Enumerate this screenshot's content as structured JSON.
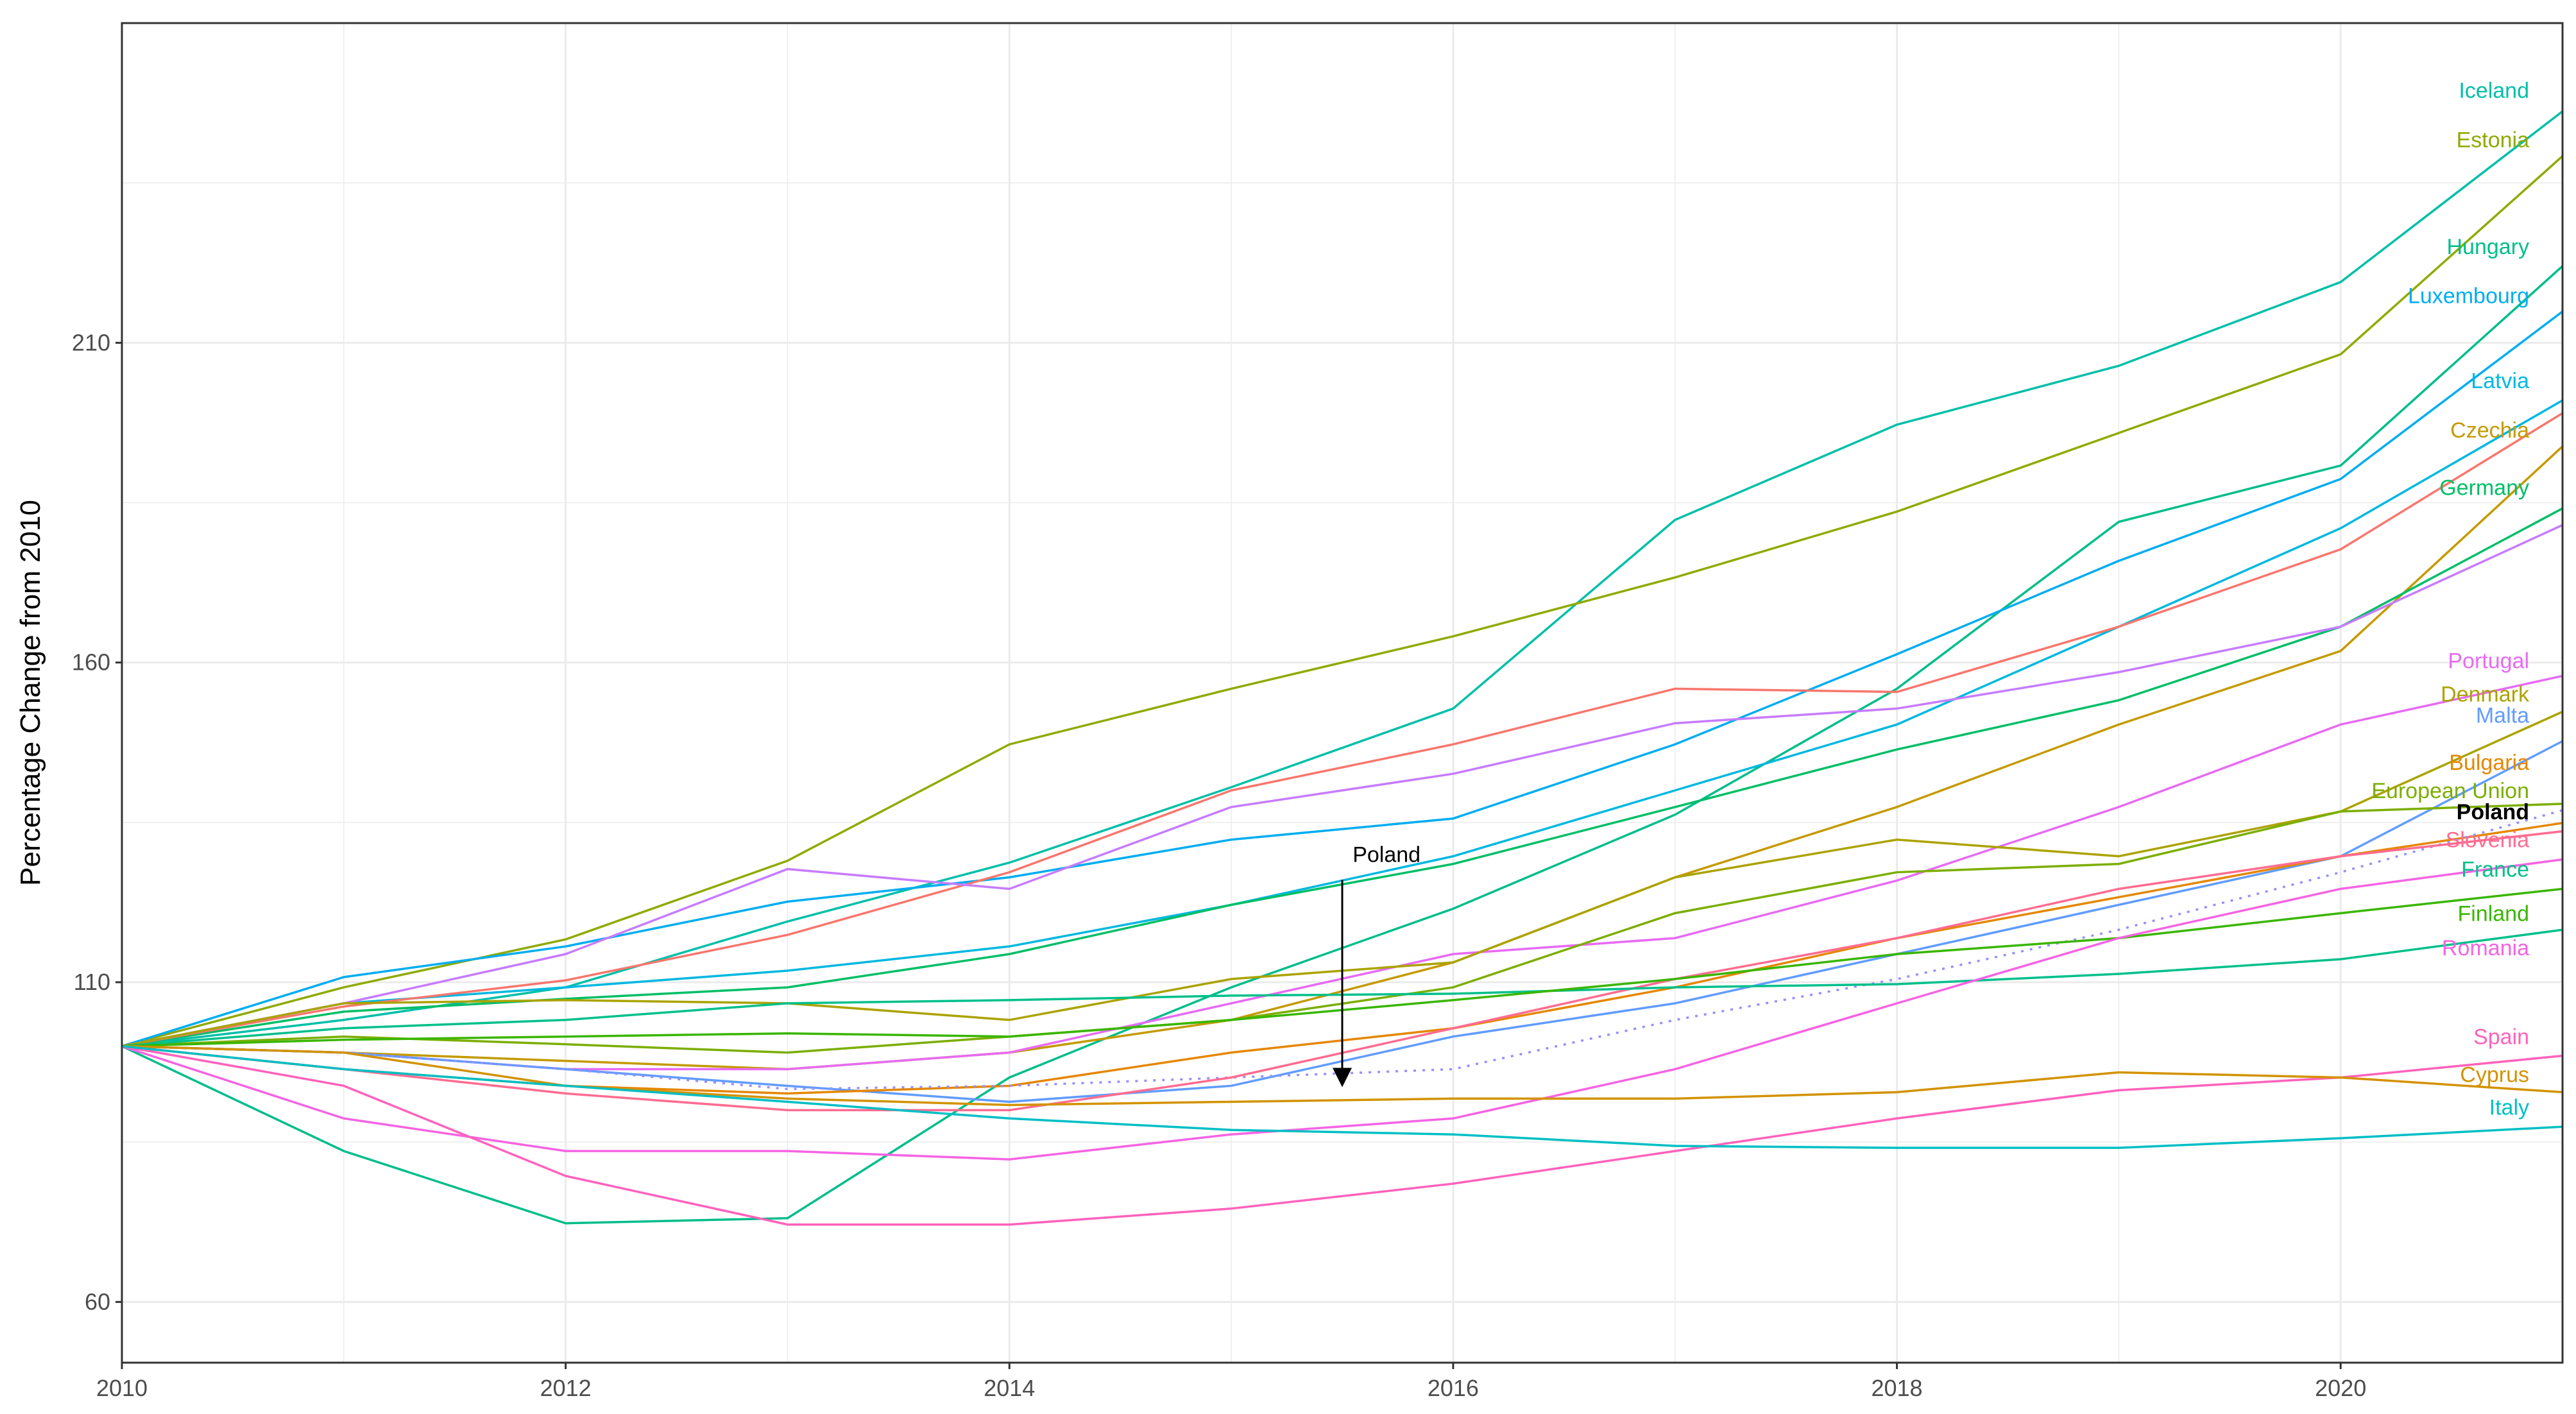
{
  "chart_data": {
    "type": "line",
    "title": "",
    "xlabel": "",
    "ylabel": "Percentage Change from 2010",
    "xlim": [
      2010,
      2021
    ],
    "ylim": [
      50.5,
      260
    ],
    "grid": true,
    "x_ticks": [
      2010,
      2012,
      2014,
      2016,
      2018,
      2020
    ],
    "y_ticks": [
      60,
      110,
      160,
      210
    ],
    "x": [
      2010,
      2011,
      2012,
      2013,
      2014,
      2015,
      2016,
      2017,
      2018,
      2019,
      2020,
      2021
    ],
    "series": [
      {
        "name": "Iceland",
        "color": "#00BFA8",
        "label_y": 249.5,
        "values": [
          100,
          104.1,
          109.2,
          119.5,
          128.7,
          140.5,
          152.8,
          182.3,
          197.2,
          206.4,
          219.5,
          246.2
        ]
      },
      {
        "name": "Estonia",
        "color": "#8FAA00",
        "label_y": 241.8,
        "values": [
          100,
          109.2,
          116.7,
          129,
          147.2,
          155.9,
          164.1,
          173.3,
          183.6,
          195.9,
          208.2,
          239.2
        ]
      },
      {
        "name": "Hungary",
        "color": "#00BD8A",
        "label_y": 225.1,
        "values": [
          100,
          83.6,
          72.3,
          73.1,
          95.1,
          109.2,
          121.5,
          136.2,
          155.9,
          182,
          190.8,
          222
        ]
      },
      {
        "name": "Luxembourg",
        "color": "#00ADF0",
        "label_y": 217.4,
        "values": [
          100,
          110.8,
          115.6,
          122.6,
          126.4,
          132.3,
          135.6,
          147.2,
          161.3,
          175.9,
          188.7,
          214.9
        ]
      },
      {
        "name": "Latvia",
        "color": "#00B8E0",
        "label_y": 204.1,
        "values": [
          100,
          106.7,
          109.2,
          111.8,
          115.6,
          122.1,
          129.7,
          140,
          150.3,
          165.6,
          181,
          201
        ]
      },
      {
        "name": "Czechia",
        "color": "#C49A00",
        "label_y": 196.4,
        "values": [
          100,
          99,
          97.7,
          96.4,
          99,
          104.1,
          113.1,
          126.4,
          137.4,
          150.3,
          161.8,
          193.8
        ]
      },
      {
        "name": "Germany",
        "color": "#00BE67",
        "label_y": 187.4,
        "values": [
          100,
          105.4,
          107.4,
          109.2,
          114.4,
          122.1,
          128.5,
          137.4,
          146.4,
          154.1,
          165.6,
          184.1
        ]
      },
      {
        "name": "",
        "color": "#F8766D",
        "label_y": null,
        "values": [
          100,
          106.2,
          110.3,
          117.4,
          127.2,
          140,
          147.2,
          155.9,
          155.4,
          165.6,
          177.7,
          199
        ]
      },
      {
        "name": "",
        "color": "#C77CFF",
        "label_y": null,
        "values": [
          100,
          106.7,
          114.4,
          127.7,
          124.6,
          137.4,
          142.6,
          150.5,
          152.8,
          158.5,
          165.6,
          181.5
        ]
      },
      {
        "name": "Portugal",
        "color": "#E76BF3",
        "label_y": 160.3,
        "values": [
          100,
          99,
          96.4,
          96.4,
          99,
          106.7,
          114.4,
          116.9,
          125.9,
          137.4,
          150.3,
          157.9
        ]
      },
      {
        "name": "Denmark",
        "color": "#ABA300",
        "label_y": 155.1,
        "values": [
          100,
          106.7,
          107.2,
          106.7,
          104.1,
          110.5,
          113.1,
          126.4,
          132.3,
          129.7,
          136.7,
          152.3
        ]
      },
      {
        "name": "Malta",
        "color": "#619CFF",
        "label_y": 151.8,
        "values": [
          100,
          99,
          96.4,
          93.8,
          91.3,
          93.8,
          101.5,
          106.7,
          114.4,
          122.1,
          129.7,
          147.7
        ]
      },
      {
        "name": "Bulgaria",
        "color": "#E58700",
        "label_y": 144.4,
        "values": [
          100,
          96.4,
          93.8,
          92.6,
          93.8,
          99,
          102.8,
          109.2,
          116.9,
          123.3,
          129.7,
          134.9
        ]
      },
      {
        "name": "European Union",
        "color": "#7CAE00",
        "label_y": 140,
        "values": [
          100,
          101.5,
          100.3,
          99,
          101.5,
          104.1,
          109.2,
          120.8,
          127.2,
          128.5,
          136.7,
          137.9
        ]
      },
      {
        "name": "Poland",
        "color": "#9590FF",
        "label_color": "#000000",
        "dotted": true,
        "label_y": 136.7,
        "values": [
          100,
          99,
          96.4,
          93.3,
          93.8,
          95.1,
          96.4,
          104.1,
          110.5,
          118.2,
          127.2,
          136.9
        ]
      },
      {
        "name": "Slovenia",
        "color": "#FF6C91",
        "label_y": 132.3,
        "values": [
          100,
          96.4,
          92.6,
          90,
          90,
          95.1,
          102.8,
          110.5,
          116.9,
          124.6,
          129.7,
          133.6
        ]
      },
      {
        "name": "France",
        "color": "#00C08B",
        "label_y": 127.7,
        "values": [
          100,
          102.8,
          104.1,
          106.7,
          107.2,
          107.9,
          108.2,
          109.2,
          109.7,
          111.3,
          113.6,
          118.2
        ]
      },
      {
        "name": "Finland",
        "color": "#39B600",
        "label_y": 120.8,
        "values": [
          100,
          101,
          101.5,
          102,
          101.5,
          104.1,
          107.2,
          110.5,
          114.4,
          116.9,
          120.8,
          124.6
        ]
      },
      {
        "name": "Romania",
        "color": "#F564E3",
        "label_y": 115.4,
        "values": [
          100,
          88.7,
          83.6,
          83.6,
          82.3,
          86.2,
          88.7,
          96.4,
          106.7,
          116.9,
          124.6,
          129.2
        ]
      },
      {
        "name": "Spain",
        "color": "#FF62BC",
        "label_y": 101.5,
        "values": [
          100,
          93.8,
          79.7,
          72.1,
          72.1,
          74.6,
          78.5,
          83.6,
          88.7,
          93.1,
          95.1,
          98.5
        ]
      },
      {
        "name": "Cyprus",
        "color": "#D39200",
        "label_y": 95.6,
        "values": [
          100,
          99,
          93.8,
          91.8,
          90.8,
          91.3,
          91.8,
          91.8,
          92.8,
          95.9,
          95.1,
          92.8
        ]
      },
      {
        "name": "Italy",
        "color": "#00BFC4",
        "label_y": 90.5,
        "values": [
          100,
          96.4,
          93.8,
          91.3,
          88.7,
          86.9,
          86.2,
          84.4,
          84.1,
          84.1,
          85.6,
          87.4
        ]
      }
    ],
    "annotations": [
      {
        "text": "Poland",
        "x": 2015.7,
        "y": 130,
        "arrow_from": [
          2015.5,
          126
        ],
        "arrow_to": [
          2015.5,
          95.1
        ]
      }
    ]
  }
}
